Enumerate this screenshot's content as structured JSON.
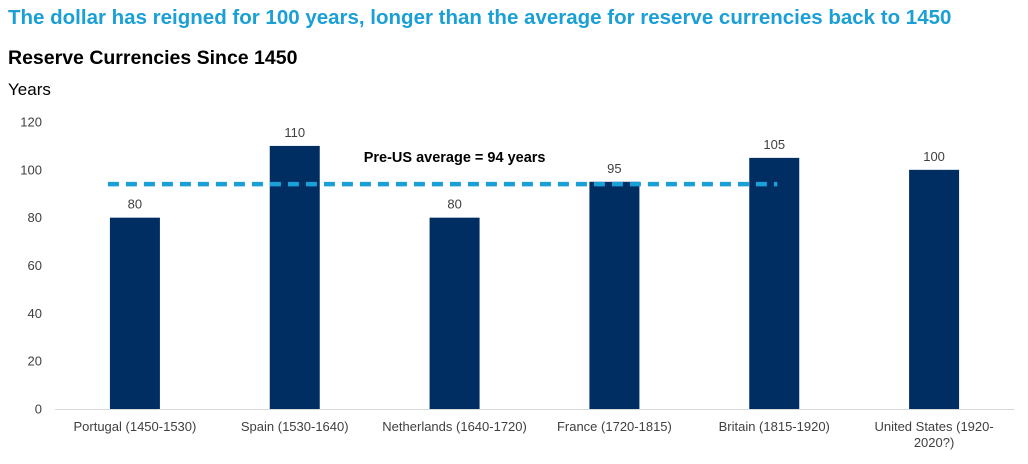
{
  "headline": "The dollar has reigned for 100 years, longer than the average for reserve currencies back to 1450",
  "colors": {
    "headline": "#1a9fd6",
    "bar": "#002d62",
    "avg_line": "#1a9fd6",
    "axis": "#d9d9d9"
  },
  "chart_data": {
    "type": "bar",
    "title": "Reserve Currencies Since 1450",
    "ylabel": "Years",
    "xlabel": "",
    "ylim": [
      0,
      120
    ],
    "yticks": [
      "0",
      "20",
      "40",
      "60",
      "80",
      "100",
      "120"
    ],
    "categories": [
      [
        "Portugal (1450-1530)"
      ],
      [
        "Spain (1530-1640)"
      ],
      [
        "Netherlands (1640-1720)"
      ],
      [
        "France (1720-1815)"
      ],
      [
        "Britain (1815-1920)"
      ],
      [
        "United States (1920-",
        "2020?)"
      ]
    ],
    "values": [
      80,
      110,
      80,
      95,
      105,
      100
    ],
    "data_labels": [
      "80",
      "110",
      "80",
      "95",
      "105",
      "100"
    ],
    "grid": false,
    "legend": "none",
    "reference_line": {
      "value": 94,
      "label": "Pre-US average = 94 years",
      "style": "dashed",
      "spans_categories": [
        "Portugal (1450-1530)",
        "Britain (1815-1920)"
      ]
    }
  }
}
